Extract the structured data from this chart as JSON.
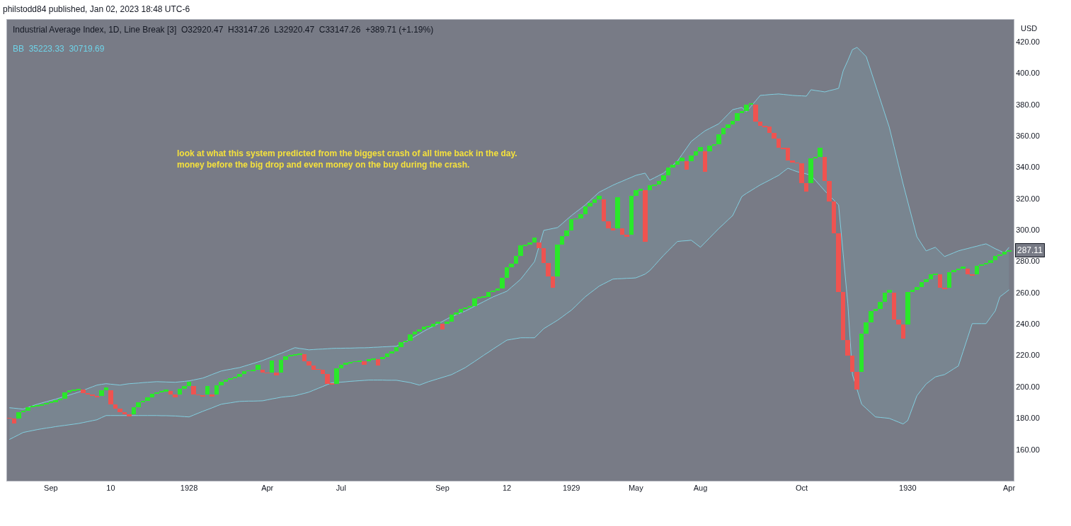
{
  "chart_data": {
    "type": "candlestick",
    "title": "Industrial Average Index, 1D, Line Break [3]  O32920.47  H33147.26  L32920.47  C33147.26  +389.71 (+1.19%)",
    "subtitle": "BB  35223.33  30719.69",
    "ylabel": "USD",
    "annotations": [
      "philstodd84 published, Jan 02, 2023 18:48 UTC-6",
      "look at what this system predicted from the biggest crash of all time back in the day.\nmoney before the big drop and even money on the buy during the crash.",
      {
        "text": "287.11",
        "y": 287.11
      }
    ],
    "categories": [
      null,
      null,
      null,
      null,
      null,
      null,
      null,
      null,
      null,
      "Sep",
      null,
      null,
      null,
      null,
      null,
      null,
      null,
      null,
      null,
      null,
      null,
      null,
      "10",
      null,
      null,
      null,
      null,
      null,
      null,
      null,
      null,
      null,
      null,
      null,
      null,
      null,
      null,
      null,
      null,
      "1928",
      null,
      null,
      null,
      null,
      null,
      null,
      null,
      null,
      null,
      null,
      null,
      null,
      null,
      null,
      null,
      null,
      "Apr",
      null,
      null,
      null,
      null,
      null,
      null,
      null,
      null,
      null,
      null,
      null,
      null,
      null,
      null,
      null,
      "Jul",
      null,
      null,
      null,
      null,
      null,
      null,
      null,
      null,
      null,
      null,
      null,
      null,
      null,
      null,
      null,
      null,
      null,
      null,
      null,
      null,
      null,
      "Sep",
      null,
      null,
      null,
      null,
      null,
      null,
      null,
      null,
      null,
      null,
      null,
      null,
      null,
      "12",
      null,
      null,
      null,
      null,
      null,
      null,
      null,
      null,
      null,
      null,
      null,
      null,
      null,
      "1929",
      null,
      null,
      null,
      null,
      null,
      null,
      null,
      null,
      null,
      null,
      null,
      null,
      null,
      "May",
      null,
      null,
      null,
      null,
      null,
      null,
      null,
      null,
      null,
      null,
      null,
      null,
      null,
      "Aug",
      null,
      null,
      null,
      null,
      null,
      null,
      null,
      null,
      null,
      null,
      null,
      null,
      null,
      null,
      null,
      null,
      null,
      null,
      null,
      null,
      null,
      "Oct",
      null,
      null,
      null,
      null,
      null,
      null,
      null,
      null,
      null,
      null,
      null,
      null,
      null,
      null,
      null,
      null,
      null,
      null,
      null,
      null,
      null,
      null,
      "1930",
      null,
      null,
      null,
      null,
      null,
      null,
      null,
      null,
      null,
      null,
      null,
      null,
      null,
      null,
      null,
      null,
      null,
      null,
      null,
      null,
      null,
      "Apr"
    ],
    "ohlc": [
      [
        180.0,
        180.0,
        179.7,
        179.7
      ],
      [
        179.7,
        179.7,
        176.6,
        176.6
      ],
      [
        179.5,
        183.7,
        179.5,
        183.7
      ],
      [
        183.7,
        184.8,
        183.7,
        184.8
      ],
      [
        184.8,
        187.0,
        184.8,
        187.0
      ],
      [
        187.0,
        187.5,
        187.0,
        187.5
      ],
      [
        187.5,
        187.9,
        187.5,
        187.9
      ],
      [
        187.9,
        188.5,
        187.9,
        188.5
      ],
      [
        188.5,
        189.7,
        188.5,
        189.7
      ],
      [
        189.7,
        190.2,
        189.7,
        190.2
      ],
      [
        190.2,
        191.5,
        190.2,
        191.5
      ],
      [
        191.5,
        192.4,
        191.5,
        192.4
      ],
      [
        192.4,
        196.3,
        192.4,
        196.3
      ],
      [
        196.3,
        197.5,
        196.3,
        197.5
      ],
      [
        197.5,
        198.0,
        197.5,
        198.0
      ],
      [
        198.0,
        198.7,
        198.0,
        198.7
      ],
      [
        198.0,
        198.0,
        195.7,
        195.7
      ],
      [
        195.7,
        195.7,
        195.2,
        195.2
      ],
      [
        195.2,
        195.2,
        193.9,
        193.9
      ],
      [
        193.9,
        193.9,
        193.5,
        193.5
      ],
      [
        193.9,
        197.5,
        193.9,
        197.5
      ],
      [
        197.5,
        199.6,
        197.5,
        199.6
      ],
      [
        197.5,
        197.5,
        188.9,
        188.9
      ],
      [
        188.9,
        188.9,
        186.0,
        186.0
      ],
      [
        186.0,
        186.0,
        183.7,
        183.7
      ],
      [
        183.7,
        183.7,
        182.5,
        182.5
      ],
      [
        182.5,
        182.5,
        181.0,
        181.0
      ],
      [
        182.5,
        186.7,
        182.5,
        186.7
      ],
      [
        186.7,
        190.0,
        186.7,
        190.0
      ],
      [
        190.0,
        190.9,
        190.0,
        190.9
      ],
      [
        190.9,
        193.0,
        190.9,
        193.0
      ],
      [
        193.0,
        195.4,
        193.0,
        195.4
      ],
      [
        195.4,
        196.5,
        195.4,
        196.5
      ],
      [
        196.5,
        197.2,
        196.5,
        197.2
      ],
      [
        197.2,
        198.0,
        197.2,
        198.0
      ],
      [
        197.2,
        197.2,
        195.0,
        195.0
      ],
      [
        195.0,
        195.0,
        193.0,
        193.0
      ],
      [
        195.0,
        198.7,
        195.0,
        198.7
      ],
      [
        198.7,
        200.5,
        198.7,
        200.5
      ],
      [
        200.5,
        203.2,
        200.5,
        203.2
      ],
      [
        200.5,
        200.5,
        195.0,
        195.0
      ],
      [
        195.0,
        195.0,
        194.6,
        194.6
      ],
      [
        194.6,
        194.6,
        193.6,
        193.6
      ],
      [
        195.0,
        200.5,
        195.0,
        200.5
      ],
      [
        195.0,
        195.0,
        193.8,
        193.8
      ],
      [
        195.0,
        201.0,
        195.0,
        201.0
      ],
      [
        201.0,
        203.2,
        201.0,
        203.2
      ],
      [
        203.2,
        204.6,
        203.2,
        204.6
      ],
      [
        204.6,
        205.5,
        204.6,
        205.5
      ],
      [
        205.5,
        206.2,
        205.5,
        206.2
      ],
      [
        206.2,
        208.2,
        206.2,
        208.2
      ],
      [
        208.2,
        210.0,
        208.2,
        210.0
      ],
      [
        210.0,
        210.3,
        210.0,
        210.3
      ],
      [
        210.3,
        210.6,
        210.3,
        210.6
      ],
      [
        210.6,
        214.0,
        210.6,
        214.0
      ],
      [
        210.6,
        210.6,
        208.8,
        208.8
      ],
      [
        208.8,
        208.8,
        208.6,
        208.6
      ],
      [
        208.8,
        216.7,
        208.8,
        216.7
      ],
      [
        208.8,
        208.8,
        207.3,
        207.3
      ],
      [
        208.8,
        217.0,
        208.8,
        217.0
      ],
      [
        217.0,
        219.4,
        217.0,
        219.4
      ],
      [
        219.4,
        220.0,
        219.4,
        220.0
      ],
      [
        220.0,
        220.5,
        220.0,
        220.5
      ],
      [
        220.5,
        220.8,
        220.5,
        220.8
      ],
      [
        220.5,
        220.5,
        216.0,
        216.0
      ],
      [
        216.0,
        216.0,
        213.7,
        213.7
      ],
      [
        213.7,
        213.7,
        211.0,
        211.0
      ],
      [
        211.0,
        211.0,
        210.8,
        210.8
      ],
      [
        210.8,
        210.8,
        208.2,
        208.2
      ],
      [
        208.2,
        208.2,
        202.0,
        202.0
      ],
      [
        202.0,
        202.0,
        201.7,
        201.7
      ],
      [
        202.0,
        211.8,
        202.0,
        211.8
      ],
      [
        211.8,
        214.0,
        211.8,
        214.0
      ],
      [
        214.0,
        215.2,
        214.0,
        215.2
      ],
      [
        215.2,
        215.8,
        215.2,
        215.8
      ],
      [
        215.8,
        216.1,
        215.8,
        216.1
      ],
      [
        216.1,
        216.4,
        216.1,
        216.4
      ],
      [
        216.1,
        216.1,
        214.0,
        214.0
      ],
      [
        216.1,
        217.5,
        216.1,
        217.5
      ],
      [
        217.5,
        217.7,
        217.5,
        217.7
      ],
      [
        217.5,
        217.5,
        213.3,
        213.3
      ],
      [
        217.5,
        219.0,
        217.5,
        219.0
      ],
      [
        219.0,
        221.2,
        219.0,
        221.2
      ],
      [
        221.2,
        222.3,
        221.2,
        222.3
      ],
      [
        222.3,
        225.3,
        222.3,
        225.3
      ],
      [
        225.3,
        228.5,
        225.3,
        228.5
      ],
      [
        228.5,
        229.4,
        228.5,
        229.4
      ],
      [
        229.4,
        233.3,
        229.4,
        233.3
      ],
      [
        233.3,
        235.1,
        233.3,
        235.1
      ],
      [
        235.1,
        236.3,
        235.1,
        236.3
      ],
      [
        236.3,
        238.1,
        236.3,
        238.1
      ],
      [
        238.1,
        238.5,
        238.1,
        238.5
      ],
      [
        238.5,
        240.0,
        238.5,
        240.0
      ],
      [
        240.0,
        241.5,
        240.0,
        241.5
      ],
      [
        240.0,
        240.0,
        236.3,
        236.3
      ],
      [
        240.0,
        241.5,
        240.0,
        241.5
      ],
      [
        241.5,
        246.0,
        241.5,
        246.0
      ],
      [
        246.0,
        247.5,
        246.0,
        247.5
      ],
      [
        247.5,
        249.8,
        247.5,
        249.8
      ],
      [
        249.8,
        250.5,
        249.8,
        250.5
      ],
      [
        250.5,
        251.6,
        250.5,
        251.6
      ],
      [
        251.6,
        256.5,
        251.6,
        256.5
      ],
      [
        256.5,
        256.8,
        256.5,
        256.8
      ],
      [
        256.8,
        257.3,
        256.8,
        257.3
      ],
      [
        257.3,
        260.6,
        257.3,
        260.6
      ],
      [
        260.6,
        261.1,
        260.6,
        261.1
      ],
      [
        261.1,
        262.7,
        261.1,
        262.7
      ],
      [
        262.7,
        269.5,
        262.7,
        269.5
      ],
      [
        269.5,
        276.4,
        269.5,
        276.4
      ],
      [
        276.4,
        278.3,
        276.4,
        278.3
      ],
      [
        278.3,
        283.3,
        278.3,
        283.3
      ],
      [
        283.3,
        290.0,
        283.3,
        290.0
      ],
      [
        290.0,
        290.6,
        290.0,
        290.6
      ],
      [
        290.6,
        291.8,
        290.6,
        291.8
      ],
      [
        291.8,
        295.1,
        291.8,
        295.1
      ],
      [
        291.8,
        291.8,
        288.5,
        288.5
      ],
      [
        288.5,
        288.5,
        279.1,
        279.1
      ],
      [
        279.1,
        279.1,
        270.4,
        270.4
      ],
      [
        270.4,
        270.4,
        263.3,
        263.3
      ],
      [
        270.4,
        290.6,
        270.4,
        290.6
      ],
      [
        290.6,
        296.0,
        290.6,
        296.0
      ],
      [
        296.0,
        299.8,
        296.0,
        299.8
      ],
      [
        299.8,
        306.9,
        299.8,
        306.9
      ],
      [
        306.9,
        307.2,
        306.9,
        307.2
      ],
      [
        307.2,
        310.2,
        307.2,
        310.2
      ],
      [
        310.2,
        315.1,
        310.2,
        315.1
      ],
      [
        315.1,
        317.4,
        315.1,
        317.4
      ],
      [
        317.4,
        319.3,
        317.4,
        319.3
      ],
      [
        319.3,
        321.9,
        319.3,
        321.9
      ],
      [
        319.3,
        319.3,
        305.4,
        305.4
      ],
      [
        305.4,
        305.4,
        300.9,
        300.9
      ],
      [
        300.9,
        300.9,
        299.8,
        299.8
      ],
      [
        300.9,
        320.9,
        300.9,
        320.9
      ],
      [
        300.9,
        300.9,
        297.1,
        297.1
      ],
      [
        297.1,
        297.1,
        295.6,
        295.6
      ],
      [
        297.1,
        321.5,
        297.1,
        321.5
      ],
      [
        321.5,
        325.2,
        321.5,
        325.2
      ],
      [
        325.2,
        326.1,
        325.2,
        326.1
      ],
      [
        325.2,
        325.2,
        292.6,
        292.6
      ],
      [
        325.2,
        328.4,
        325.2,
        328.4
      ],
      [
        328.4,
        329.0,
        328.4,
        329.0
      ],
      [
        329.0,
        331.2,
        329.0,
        331.2
      ],
      [
        331.2,
        335.0,
        331.2,
        335.0
      ],
      [
        335.0,
        339.9,
        335.0,
        339.9
      ],
      [
        339.9,
        341.7,
        339.9,
        341.7
      ],
      [
        341.7,
        343.7,
        341.7,
        343.7
      ],
      [
        343.7,
        345.9,
        343.7,
        345.9
      ],
      [
        343.7,
        343.7,
        338.4,
        338.4
      ],
      [
        343.7,
        347.4,
        343.7,
        347.4
      ],
      [
        347.4,
        350.1,
        347.4,
        350.1
      ],
      [
        350.1,
        352.7,
        350.1,
        352.7
      ],
      [
        350.1,
        350.1,
        336.9,
        336.9
      ],
      [
        350.1,
        353.8,
        350.1,
        353.8
      ],
      [
        353.8,
        354.7,
        353.8,
        354.7
      ],
      [
        354.7,
        361.0,
        354.7,
        361.0
      ],
      [
        361.0,
        365.0,
        361.0,
        365.0
      ],
      [
        365.0,
        367.3,
        365.0,
        367.3
      ],
      [
        367.3,
        369.5,
        367.3,
        369.5
      ],
      [
        369.5,
        374.5,
        369.5,
        374.5
      ],
      [
        374.5,
        375.7,
        374.5,
        375.7
      ],
      [
        375.7,
        379.7,
        375.7,
        379.7
      ],
      [
        379.7,
        380.8,
        379.7,
        380.8
      ],
      [
        379.7,
        379.7,
        369.2,
        369.2
      ],
      [
        369.2,
        369.2,
        366.5,
        366.5
      ],
      [
        366.5,
        366.5,
        365.8,
        365.8
      ],
      [
        365.8,
        365.8,
        361.7,
        361.7
      ],
      [
        361.7,
        361.7,
        358.4,
        358.4
      ],
      [
        358.4,
        358.4,
        352.2,
        352.2
      ],
      [
        352.2,
        352.2,
        351.9,
        351.9
      ],
      [
        352.2,
        352.2,
        344.4,
        344.4
      ],
      [
        344.4,
        344.4,
        342.9,
        342.9
      ],
      [
        342.9,
        342.9,
        342.6,
        342.6
      ],
      [
        342.6,
        342.6,
        329.7,
        329.7
      ],
      [
        329.7,
        329.7,
        324.6,
        324.6
      ],
      [
        329.7,
        345.5,
        329.7,
        345.5
      ],
      [
        345.5,
        346.5,
        345.5,
        346.5
      ],
      [
        346.5,
        352.2,
        346.5,
        352.2
      ],
      [
        346.5,
        346.5,
        331.0,
        331.0
      ],
      [
        331.0,
        331.0,
        318.0,
        318.0
      ],
      [
        318.0,
        318.0,
        298.0,
        298.0
      ],
      [
        298.0,
        298.0,
        260.4,
        260.4
      ],
      [
        260.4,
        260.4,
        229.6,
        229.6
      ],
      [
        229.6,
        229.6,
        219.8,
        219.8
      ],
      [
        219.8,
        219.8,
        209.3,
        209.3
      ],
      [
        209.3,
        209.3,
        198.0,
        198.0
      ],
      [
        209.3,
        233.8,
        209.3,
        233.8
      ],
      [
        233.8,
        241.1,
        233.8,
        241.1
      ],
      [
        241.1,
        248.3,
        241.1,
        248.3
      ],
      [
        248.3,
        249.4,
        248.3,
        249.4
      ],
      [
        249.4,
        254.3,
        249.4,
        254.3
      ],
      [
        254.3,
        260.1,
        254.3,
        260.1
      ],
      [
        260.1,
        261.9,
        260.1,
        261.9
      ],
      [
        260.1,
        260.1,
        242.6,
        242.6
      ],
      [
        242.6,
        242.6,
        239.8,
        239.8
      ],
      [
        239.8,
        239.8,
        230.6,
        230.6
      ],
      [
        239.8,
        260.4,
        239.8,
        260.4
      ],
      [
        260.4,
        261.9,
        260.4,
        261.9
      ],
      [
        261.9,
        263.4,
        261.9,
        263.4
      ],
      [
        263.4,
        266.7,
        263.4,
        266.7
      ],
      [
        266.7,
        268.3,
        266.7,
        268.3
      ],
      [
        268.3,
        271.6,
        268.3,
        271.6
      ],
      [
        271.6,
        272.1,
        271.6,
        272.1
      ],
      [
        271.6,
        271.6,
        263.1,
        263.1
      ],
      [
        263.1,
        263.1,
        262.2,
        262.2
      ],
      [
        263.1,
        273.1,
        263.1,
        273.1
      ],
      [
        273.1,
        274.3,
        273.1,
        274.3
      ],
      [
        274.3,
        275.4,
        274.3,
        275.4
      ],
      [
        275.4,
        276.6,
        275.4,
        276.6
      ],
      [
        275.4,
        275.4,
        271.6,
        271.6
      ],
      [
        271.6,
        271.6,
        271.2,
        271.2
      ],
      [
        271.6,
        277.3,
        271.6,
        277.3
      ],
      [
        277.3,
        278.1,
        277.3,
        278.1
      ],
      [
        278.1,
        279.1,
        278.1,
        279.1
      ],
      [
        279.1,
        280.6,
        279.1,
        280.6
      ],
      [
        280.6,
        283.2,
        280.6,
        283.2
      ],
      [
        283.2,
        284.1,
        283.2,
        284.1
      ],
      [
        284.1,
        285.9,
        284.1,
        285.9
      ],
      [
        285.9,
        287.11,
        285.9,
        287.11
      ]
    ],
    "series": [
      {
        "type": "line",
        "color": "#82cfe0",
        "values": [
          null,
          null,
          null,
          null,
          null,
          null,
          null,
          null,
          null,
          null,
          null,
          null,
          null,
          null,
          null,
          null,
          null,
          null,
          null,
          null,
          null,
          null,
          null,
          null,
          null,
          null,
          null,
          null,
          null,
          null,
          null,
          null,
          null,
          null,
          null,
          null,
          null,
          null,
          null,
          null,
          null,
          null,
          null,
          null,
          null,
          null,
          null,
          null,
          null,
          null,
          null,
          null,
          null,
          null,
          null,
          null,
          null,
          null,
          null,
          null,
          null,
          null,
          null,
          null,
          null,
          null,
          null,
          null,
          null,
          null,
          null,
          null,
          null,
          null,
          null,
          null,
          null,
          null,
          null,
          null,
          null,
          null,
          null,
          null,
          null,
          null,
          null,
          null,
          null,
          null,
          null,
          null,
          null,
          null,
          null,
          null,
          null,
          null,
          null,
          null,
          null,
          null,
          null,
          null,
          null,
          null,
          null,
          null,
          null,
          null,
          null,
          null,
          null,
          null,
          null,
          null,
          null,
          null,
          null,
          null,
          null,
          null,
          null,
          null,
          null,
          null,
          null,
          null,
          null,
          null,
          null,
          null,
          null,
          null,
          null,
          null,
          null,
          null,
          null,
          null,
          null,
          null,
          null,
          null,
          null,
          null,
          null,
          null,
          null,
          null,
          null,
          null,
          null,
          null,
          null,
          null,
          null,
          null,
          null,
          null,
          null,
          null,
          null,
          null,
          null,
          null,
          null,
          null,
          null,
          null,
          null,
          null,
          null,
          null,
          null,
          null,
          null,
          null,
          null,
          null,
          null,
          null,
          null,
          null,
          null,
          null,
          null,
          null,
          null,
          null,
          null,
          null,
          null,
          null,
          null,
          null,
          null,
          null,
          null,
          null,
          null,
          null,
          null,
          null,
          null,
          null,
          null,
          null,
          null,
          null,
          null,
          null,
          null,
          null,
          null,
          null,
          null,
          null
        ],
        "upper": [
          186.6,
          186.3,
          186.0,
          185.7,
          186.7,
          187.8,
          188.8,
          189.6,
          190.4,
          191.2,
          192.0,
          192.9,
          193.8,
          194.7,
          195.6,
          196.5,
          197.6,
          198.8,
          199.9,
          201.0,
          201.5,
          201.9,
          201.6,
          201.3,
          201.0,
          201.5,
          201.9,
          202.1,
          202.3,
          202.6,
          202.8,
          203.0,
          203.2,
          203.1,
          203.0,
          202.9,
          202.8,
          203.1,
          203.4,
          203.7,
          204.3,
          204.9,
          205.5,
          206.6,
          207.8,
          208.9,
          210.0,
          210.6,
          211.1,
          211.7,
          212.2,
          213.1,
          214.0,
          214.9,
          215.8,
          216.7,
          217.9,
          219.0,
          220.2,
          221.3,
          222.5,
          223.7,
          224.9,
          224.4,
          224.0,
          223.5,
          223.7,
          223.9,
          224.0,
          224.2,
          224.4,
          224.5,
          224.5,
          224.6,
          224.6,
          224.7,
          224.8,
          224.8,
          224.9,
          225.1,
          225.2,
          225.4,
          225.5,
          225.7,
          225.8,
          227.3,
          228.8,
          230.3,
          232.0,
          233.7,
          235.4,
          237.0,
          238.5,
          240.1,
          241.6,
          243.2,
          244.7,
          245.9,
          247.1,
          248.3,
          249.8,
          251.3,
          252.8,
          254.3,
          255.8,
          257.3,
          258.5,
          259.7,
          260.9,
          263.5,
          266.0,
          268.6,
          272.3,
          276.1,
          279.8,
          289.8,
          299.7,
          300.3,
          300.9,
          301.5,
          304.0,
          306.6,
          309.1,
          311.4,
          313.6,
          315.9,
          318.6,
          321.3,
          324.0,
          325.5,
          327.0,
          328.5,
          329.8,
          331.0,
          332.3,
          333.5,
          334.8,
          335.5,
          336.2,
          331.7,
          333.2,
          334.7,
          336.2,
          338.7,
          341.3,
          343.8,
          348.0,
          352.2,
          356.4,
          358.7,
          361.0,
          363.2,
          364.7,
          366.2,
          367.7,
          370.7,
          373.7,
          376.7,
          377.4,
          378.1,
          375.4,
          378.9,
          382.3,
          385.8,
          386.0,
          386.3,
          386.5,
          386.7,
          386.4,
          386.1,
          385.8,
          385.6,
          385.5,
          385.3,
          389.4,
          388.9,
          388.5,
          388.0,
          388.8,
          389.5,
          390.3,
          401.5,
          408.0,
          415.0,
          416.4,
          413.5,
          410.5,
          401.5,
          392.5,
          383.5,
          374.5,
          365.5,
          353.5,
          341.4,
          329.4,
          318.1,
          306.9,
          295.6,
          291.1,
          286.6,
          287.8,
          288.9,
          286.0,
          283.0,
          284.2,
          285.4,
          286.6,
          287.4,
          288.1,
          288.9,
          289.6,
          290.4,
          291.1,
          289.6,
          288.0,
          286.7,
          285.3,
          288.9
        ],
        "lower": [
          166.3,
          167.8,
          169.3,
          170.8,
          171.4,
          172.0,
          172.6,
          173.1,
          173.6,
          174.0,
          174.5,
          174.9,
          175.3,
          175.7,
          176.1,
          176.5,
          177.1,
          177.7,
          178.3,
          178.9,
          180.3,
          181.6,
          181.6,
          181.6,
          181.6,
          181.6,
          181.6,
          181.6,
          181.6,
          181.6,
          181.6,
          181.6,
          181.6,
          181.5,
          181.5,
          181.4,
          181.3,
          181.1,
          180.9,
          180.7,
          181.9,
          183.1,
          184.3,
          185.4,
          186.5,
          187.7,
          188.8,
          189.3,
          189.7,
          190.2,
          190.6,
          190.7,
          190.8,
          190.8,
          190.9,
          191.0,
          191.6,
          192.2,
          192.7,
          193.3,
          193.6,
          193.9,
          194.2,
          195.0,
          195.7,
          196.5,
          197.7,
          198.9,
          200.1,
          201.3,
          202.5,
          202.7,
          202.9,
          203.1,
          203.4,
          203.6,
          203.8,
          204.0,
          204.2,
          204.2,
          204.2,
          204.2,
          204.1,
          204.1,
          204.1,
          203.6,
          203.1,
          202.6,
          201.8,
          201.0,
          202.1,
          203.2,
          204.1,
          205.0,
          205.9,
          206.8,
          207.7,
          209.2,
          210.7,
          212.2,
          214.2,
          216.1,
          218.1,
          220.1,
          222.0,
          224.0,
          225.9,
          227.8,
          229.7,
          230.2,
          230.7,
          231.2,
          231.2,
          231.2,
          231.2,
          234.1,
          237.0,
          238.8,
          240.6,
          242.4,
          244.5,
          246.7,
          248.8,
          251.6,
          254.5,
          257.3,
          259.6,
          261.8,
          264.1,
          265.6,
          267.1,
          268.6,
          268.8,
          268.9,
          269.1,
          269.2,
          269.4,
          270.6,
          271.8,
          274.0,
          277.2,
          280.5,
          283.7,
          286.7,
          289.6,
          292.6,
          292.9,
          293.1,
          293.4,
          291.2,
          288.9,
          291.9,
          294.9,
          297.9,
          300.9,
          303.6,
          306.4,
          309.1,
          315.2,
          321.3,
          323.3,
          325.1,
          326.9,
          328.7,
          330.2,
          331.7,
          333.3,
          334.8,
          337.1,
          339.3,
          338.2,
          337.1,
          336.4,
          335.7,
          334.8,
          331.5,
          328.2,
          324.9,
          321.9,
          318.9,
          315.9,
          284.4,
          252.8,
          207.7,
          198.3,
          188.8,
          186.1,
          183.4,
          180.7,
          180.4,
          180.1,
          179.8,
          178.6,
          177.4,
          176.2,
          178.4,
          186.3,
          194.2,
          198.0,
          201.7,
          204.0,
          206.2,
          207.0,
          207.7,
          209.5,
          211.4,
          213.2,
          222.2,
          231.2,
          240.2,
          240.2,
          240.2,
          240.2,
          244.3,
          248.3,
          257.3,
          259.5,
          261.8
        ]
      },
      {
        "type": "line",
        "color": "#82cfe0",
        "values": [
          186.6,
          186.3,
          186.0,
          185.7,
          186.7,
          187.8,
          188.8,
          189.6,
          190.4,
          191.2,
          192.0,
          192.9,
          193.8,
          194.7,
          195.6,
          196.5,
          197.6,
          198.8,
          199.9,
          201.0,
          201.5,
          201.9,
          201.6,
          201.3,
          201.0,
          201.5,
          201.9,
          202.1,
          202.3,
          202.6,
          202.8,
          203.0,
          203.2,
          203.1,
          203.0,
          202.9,
          202.8,
          203.1,
          203.4,
          203.7,
          204.3,
          204.9,
          205.5,
          206.6,
          207.8,
          208.9,
          210.0,
          210.6,
          211.1,
          211.7,
          212.2,
          213.1,
          214.0,
          214.9,
          215.8,
          216.7,
          217.9,
          219.0,
          220.2,
          221.3,
          222.5,
          223.7,
          224.9,
          224.4,
          224.0,
          223.5,
          223.7,
          223.9,
          224.0,
          224.2,
          224.4,
          224.5,
          224.5,
          224.6,
          224.6,
          224.7,
          224.8,
          224.8,
          224.9,
          225.1,
          225.2,
          225.4,
          225.5,
          225.7,
          225.8,
          227.3,
          228.8,
          230.3,
          232.0,
          233.7,
          235.4,
          237.0,
          238.5,
          240.1,
          241.6,
          243.2,
          244.7,
          245.9,
          247.1,
          248.3,
          249.8,
          251.3,
          252.8,
          254.3,
          255.8,
          257.3,
          258.5,
          259.7,
          260.9,
          263.5,
          266.0,
          268.6,
          272.3,
          276.1,
          279.8,
          289.8,
          299.7,
          300.3,
          300.9,
          301.5,
          304.0,
          306.6,
          309.1,
          311.4,
          313.6,
          315.9,
          318.6,
          321.3,
          324.0,
          325.5,
          327.0,
          328.5,
          329.8,
          331.0,
          332.3,
          333.5,
          334.8,
          335.5,
          336.2,
          331.7,
          333.2,
          334.7,
          336.2,
          338.7,
          341.3,
          343.8,
          348.0,
          352.2,
          356.4,
          358.7,
          361.0,
          363.2,
          364.7,
          366.2,
          367.7,
          370.7,
          373.7,
          376.7,
          377.4,
          378.1,
          375.4,
          378.9,
          382.3,
          385.8,
          386.0,
          386.3,
          386.5,
          386.7,
          386.4,
          386.1,
          385.8,
          385.6,
          385.5,
          385.3,
          389.4,
          388.9,
          388.5,
          388.0,
          388.8,
          389.5,
          390.3,
          401.5,
          408.0,
          415.0,
          416.4,
          413.5,
          410.5,
          401.5,
          392.5,
          383.5,
          374.5,
          365.5,
          353.5,
          341.4,
          329.4,
          318.1,
          306.9,
          295.6,
          291.1,
          286.6,
          287.8,
          288.9,
          286.0,
          283.0,
          284.2,
          285.4,
          286.6,
          287.4,
          288.1,
          288.9,
          289.6,
          290.4,
          291.1,
          289.6,
          288.0,
          286.7,
          285.3,
          288.9
        ]
      },
      {
        "type": "line",
        "color": "#82cfe0",
        "values": [
          166.3,
          167.8,
          169.3,
          170.8,
          171.4,
          172.0,
          172.6,
          173.1,
          173.6,
          174.0,
          174.5,
          174.9,
          175.3,
          175.7,
          176.1,
          176.5,
          177.1,
          177.7,
          178.3,
          178.9,
          180.3,
          181.6,
          181.6,
          181.6,
          181.6,
          181.6,
          181.6,
          181.6,
          181.6,
          181.6,
          181.6,
          181.6,
          181.6,
          181.5,
          181.5,
          181.4,
          181.3,
          181.1,
          180.9,
          180.7,
          181.9,
          183.1,
          184.3,
          185.4,
          186.5,
          187.7,
          188.8,
          189.3,
          189.7,
          190.2,
          190.6,
          190.7,
          190.8,
          190.8,
          190.9,
          191.0,
          191.6,
          192.2,
          192.7,
          193.3,
          193.6,
          193.9,
          194.2,
          195.0,
          195.7,
          196.5,
          197.7,
          198.9,
          200.1,
          201.3,
          202.5,
          202.7,
          202.9,
          203.1,
          203.4,
          203.6,
          203.8,
          204.0,
          204.2,
          204.2,
          204.2,
          204.2,
          204.1,
          204.1,
          204.1,
          203.6,
          203.1,
          202.6,
          201.8,
          201.0,
          202.1,
          203.2,
          204.1,
          205.0,
          205.9,
          206.8,
          207.7,
          209.2,
          210.7,
          212.2,
          214.2,
          216.1,
          218.1,
          220.1,
          222.0,
          224.0,
          225.9,
          227.8,
          229.7,
          230.2,
          230.7,
          231.2,
          231.2,
          231.2,
          231.2,
          234.1,
          237.0,
          238.8,
          240.6,
          242.4,
          244.5,
          246.7,
          248.8,
          251.6,
          254.5,
          257.3,
          259.6,
          261.8,
          264.1,
          265.6,
          267.1,
          268.6,
          268.8,
          268.9,
          269.1,
          269.2,
          269.4,
          270.6,
          271.8,
          274.0,
          277.2,
          280.5,
          283.7,
          286.7,
          289.6,
          292.6,
          292.9,
          293.1,
          293.4,
          291.2,
          288.9,
          291.9,
          294.9,
          297.9,
          300.9,
          303.6,
          306.4,
          309.1,
          315.2,
          321.3,
          323.3,
          325.1,
          326.9,
          328.7,
          330.2,
          331.7,
          333.3,
          334.8,
          337.1,
          339.3,
          338.2,
          337.1,
          336.4,
          335.7,
          334.8,
          331.5,
          328.2,
          324.9,
          321.9,
          318.9,
          315.9,
          284.4,
          252.8,
          207.7,
          198.3,
          188.8,
          186.1,
          183.4,
          180.7,
          180.4,
          180.1,
          179.8,
          178.6,
          177.4,
          176.2,
          178.4,
          186.3,
          194.2,
          198.0,
          201.7,
          204.0,
          206.2,
          207.0,
          207.7,
          209.5,
          211.4,
          213.2,
          222.2,
          231.2,
          240.2,
          240.2,
          240.2,
          240.2,
          244.3,
          248.3,
          257.3,
          259.5,
          261.8
        ]
      }
    ],
    "ylim": [
      140,
      434
    ],
    "yticks": [
      {
        "value": 160,
        "label": "160.00"
      },
      {
        "value": 180,
        "label": "180.00"
      },
      {
        "value": 200,
        "label": "200.00"
      },
      {
        "value": 220,
        "label": "220.00"
      },
      {
        "value": 240,
        "label": "240.00"
      },
      {
        "value": 260,
        "label": "260.00"
      },
      {
        "value": 280,
        "label": "280.00"
      },
      {
        "value": 300,
        "label": "300.00"
      },
      {
        "value": 320,
        "label": "320.00"
      },
      {
        "value": 340,
        "label": "340.00"
      },
      {
        "value": 360,
        "label": "360.00"
      },
      {
        "value": 380,
        "label": "380.00"
      },
      {
        "value": 400,
        "label": "400.00"
      },
      {
        "value": 420,
        "label": "420.00"
      }
    ]
  }
}
